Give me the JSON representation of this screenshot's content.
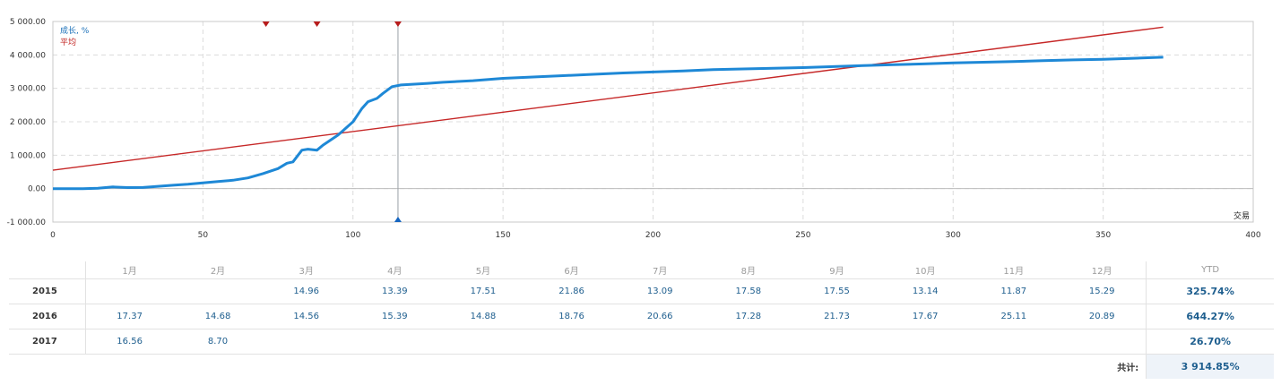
{
  "chart_data": {
    "type": "line",
    "legend": [
      "成长, %",
      "平均"
    ],
    "legend_position": "top-left",
    "xlabel": "交易",
    "xlim": [
      0,
      400
    ],
    "ylim": [
      -1000,
      5000
    ],
    "x_ticks": [
      "0",
      "50",
      "100",
      "150",
      "200",
      "250",
      "300",
      "350",
      "400"
    ],
    "y_ticks": [
      "5 000.00",
      "4 000.00",
      "3 000.00",
      "2 000.00",
      "1 000.00",
      "0.00",
      "-1 000.00"
    ],
    "grid": true,
    "series": [
      {
        "name": "成长, %",
        "color": "#1e88d6",
        "points": [
          [
            0,
            0
          ],
          [
            10,
            0
          ],
          [
            15,
            10
          ],
          [
            20,
            50
          ],
          [
            25,
            30
          ],
          [
            30,
            35
          ],
          [
            35,
            70
          ],
          [
            40,
            100
          ],
          [
            45,
            130
          ],
          [
            50,
            170
          ],
          [
            55,
            210
          ],
          [
            60,
            250
          ],
          [
            65,
            320
          ],
          [
            70,
            450
          ],
          [
            75,
            600
          ],
          [
            78,
            760
          ],
          [
            80,
            800
          ],
          [
            83,
            1150
          ],
          [
            85,
            1180
          ],
          [
            88,
            1150
          ],
          [
            90,
            1300
          ],
          [
            95,
            1600
          ],
          [
            100,
            2000
          ],
          [
            103,
            2400
          ],
          [
            105,
            2600
          ],
          [
            108,
            2700
          ],
          [
            110,
            2850
          ],
          [
            113,
            3050
          ],
          [
            116,
            3100
          ],
          [
            125,
            3150
          ],
          [
            130,
            3180
          ],
          [
            140,
            3230
          ],
          [
            150,
            3300
          ],
          [
            160,
            3340
          ],
          [
            170,
            3380
          ],
          [
            180,
            3420
          ],
          [
            190,
            3460
          ],
          [
            200,
            3490
          ],
          [
            210,
            3520
          ],
          [
            220,
            3560
          ],
          [
            230,
            3580
          ],
          [
            240,
            3600
          ],
          [
            250,
            3620
          ],
          [
            260,
            3650
          ],
          [
            270,
            3680
          ],
          [
            280,
            3710
          ],
          [
            290,
            3730
          ],
          [
            300,
            3760
          ],
          [
            310,
            3780
          ],
          [
            320,
            3800
          ],
          [
            330,
            3830
          ],
          [
            340,
            3850
          ],
          [
            350,
            3870
          ],
          [
            360,
            3900
          ],
          [
            370,
            3930
          ]
        ]
      },
      {
        "name": "平均",
        "color": "#c62828",
        "points": [
          [
            0,
            550
          ],
          [
            370,
            4830
          ]
        ]
      }
    ],
    "markers": {
      "top_triangles_x": [
        71,
        88,
        115
      ],
      "vertical_line_x": 115,
      "bottom_triangle_x": 115
    }
  },
  "returns_table": {
    "months": [
      "1月",
      "2月",
      "3月",
      "4月",
      "5月",
      "6月",
      "7月",
      "8月",
      "9月",
      "10月",
      "11月",
      "12月"
    ],
    "ytd_header": "YTD",
    "rows": [
      {
        "year": "2015",
        "values": [
          "",
          "",
          "14.96",
          "13.39",
          "17.51",
          "21.86",
          "13.09",
          "17.58",
          "17.55",
          "13.14",
          "11.87",
          "15.29"
        ],
        "ytd": "325.74%"
      },
      {
        "year": "2016",
        "values": [
          "17.37",
          "14.68",
          "14.56",
          "15.39",
          "14.88",
          "18.76",
          "20.66",
          "17.28",
          "21.73",
          "17.67",
          "25.11",
          "20.89"
        ],
        "ytd": "644.27%"
      },
      {
        "year": "2017",
        "values": [
          "16.56",
          "8.70",
          "",
          "",
          "",
          "",
          "",
          "",
          "",
          "",
          "",
          ""
        ],
        "ytd": "26.70%"
      }
    ],
    "total_label": "共计:",
    "total_value": "3 914.85%"
  }
}
